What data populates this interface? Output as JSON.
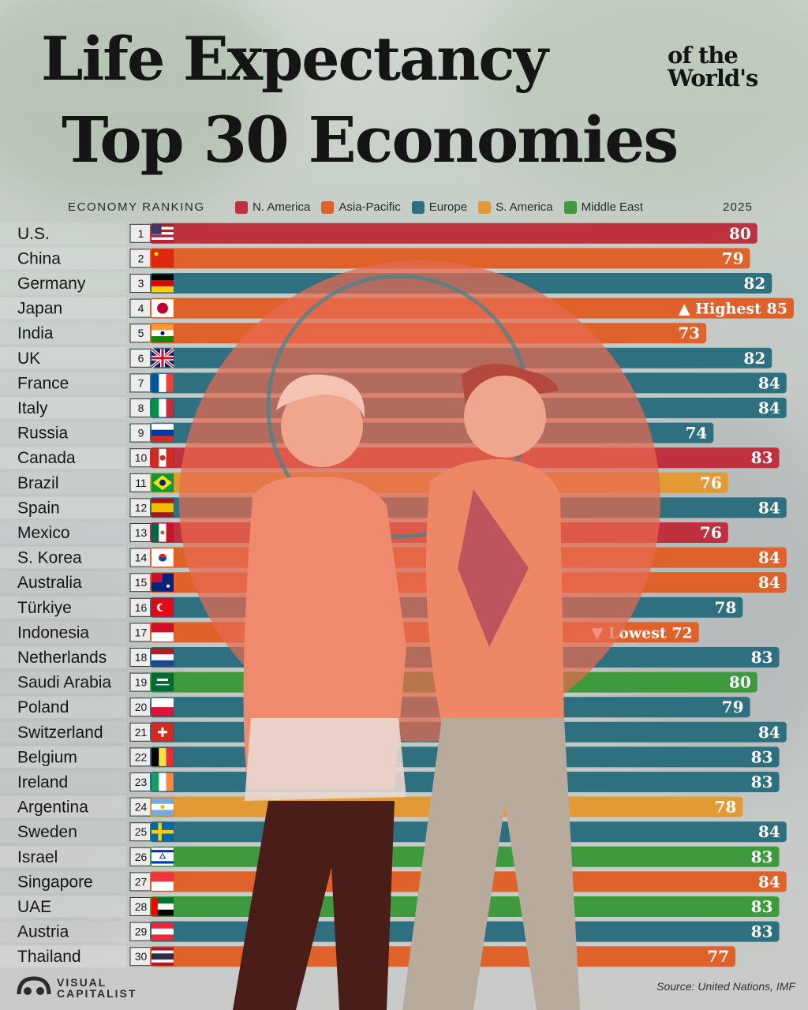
{
  "title": {
    "line1": "Life Expectancy",
    "side_line1": "of the",
    "side_line2": "World's",
    "line2": "Top 30 Economies"
  },
  "header": {
    "ranking_label": "ECONOMY RANKING",
    "year_label": "2025"
  },
  "legend": [
    {
      "label": "N. America",
      "color": "#c0313f"
    },
    {
      "label": "Asia-Pacific",
      "color": "#e0622b"
    },
    {
      "label": "Europe",
      "color": "#2e6f80"
    },
    {
      "label": "S. America",
      "color": "#e39a35"
    },
    {
      "label": "Middle East",
      "color": "#3f9a3e"
    }
  ],
  "colors": {
    "N. America": "#c0313f",
    "Asia-Pacific": "#e0622b",
    "Europe": "#2e6f80",
    "S. America": "#e39a35",
    "Middle East": "#3f9a3e",
    "text": "#151515",
    "rank_box": "#e9e9e9"
  },
  "chart_data": {
    "type": "bar",
    "orientation": "horizontal",
    "title": "Life Expectancy of the World's Top 30 Economies",
    "legend_placement": "top",
    "categories": [
      "U.S.",
      "China",
      "Germany",
      "Japan",
      "India",
      "UK",
      "France",
      "Italy",
      "Russia",
      "Canada",
      "Brazil",
      "Spain",
      "Mexico",
      "S. Korea",
      "Australia",
      "Türkiye",
      "Indonesia",
      "Netherlands",
      "Saudi Arabia",
      "Poland",
      "Switzerland",
      "Belgium",
      "Ireland",
      "Argentina",
      "Sweden",
      "Israel",
      "Singapore",
      "UAE",
      "Austria",
      "Thailand"
    ],
    "ranks": [
      1,
      2,
      3,
      4,
      5,
      6,
      7,
      8,
      9,
      10,
      11,
      12,
      13,
      14,
      15,
      16,
      17,
      18,
      19,
      20,
      21,
      22,
      23,
      24,
      25,
      26,
      27,
      28,
      29,
      30
    ],
    "values": [
      80,
      79,
      82,
      85,
      73,
      82,
      84,
      84,
      74,
      83,
      76,
      84,
      76,
      84,
      84,
      78,
      72,
      83,
      80,
      79,
      84,
      83,
      83,
      78,
      84,
      83,
      84,
      83,
      83,
      77
    ],
    "regions": [
      "N. America",
      "Asia-Pacific",
      "Europe",
      "Asia-Pacific",
      "Asia-Pacific",
      "Europe",
      "Europe",
      "Europe",
      "Europe",
      "N. America",
      "S. America",
      "Europe",
      "N. America",
      "Asia-Pacific",
      "Asia-Pacific",
      "Europe",
      "Asia-Pacific",
      "Europe",
      "Middle East",
      "Europe",
      "Europe",
      "Europe",
      "Europe",
      "S. America",
      "Europe",
      "Middle East",
      "Asia-Pacific",
      "Middle East",
      "Europe",
      "Asia-Pacific"
    ],
    "flags": [
      "us",
      "cn",
      "de",
      "jp",
      "in",
      "gb",
      "fr",
      "it",
      "ru",
      "ca",
      "br",
      "es",
      "mx",
      "kr",
      "au",
      "tr",
      "id",
      "nl",
      "sa",
      "pl",
      "ch",
      "be",
      "ie",
      "ar",
      "se",
      "il",
      "sg",
      "ae",
      "at",
      "th"
    ],
    "annotations": [
      {
        "category": "Japan",
        "text": "Highest",
        "marker": "▲"
      },
      {
        "category": "Indonesia",
        "text": "Lowest",
        "marker": "▼"
      }
    ],
    "xlim": [
      0,
      85
    ]
  },
  "footer": {
    "brand_line1": "VISUAL",
    "brand_line2": "CAPITALIST",
    "source": "Source: United Nations, IMF"
  }
}
